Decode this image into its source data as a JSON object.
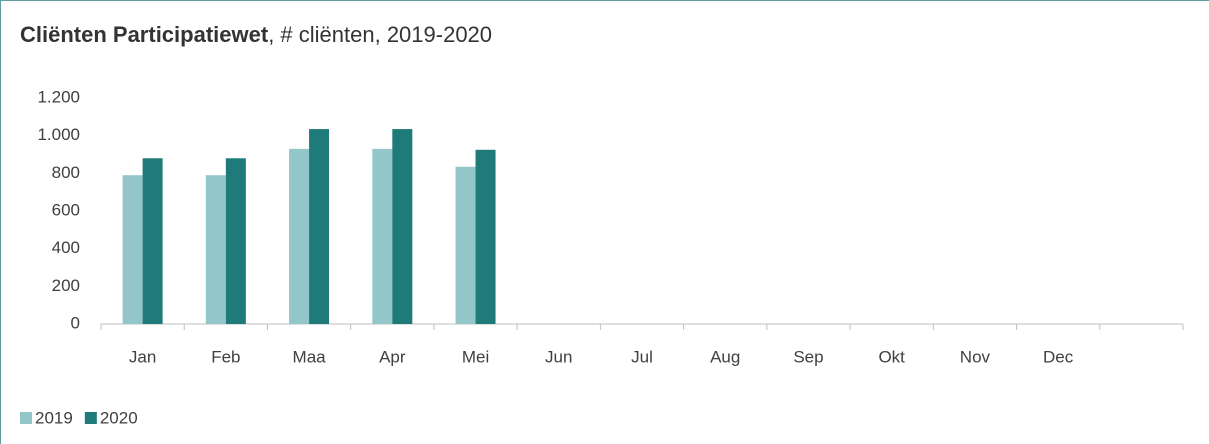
{
  "chart_data": {
    "type": "bar",
    "title": [
      "Cliënten Participatiewet",
      ", # cliënten, 2019-2020"
    ],
    "categories": [
      "Jan",
      "Feb",
      "Maa",
      "Apr",
      "Mei",
      "Jun",
      "Jul",
      "Aug",
      "Sep",
      "Okt",
      "Nov",
      "Dec",
      null
    ],
    "series": [
      {
        "name": "2019",
        "color": "#93c6c8",
        "values": [
          790,
          790,
          930,
          930,
          835,
          null,
          null,
          null,
          null,
          null,
          null,
          null,
          null
        ]
      },
      {
        "name": "2020",
        "color": "#1f7a7a",
        "values": [
          880,
          880,
          1035,
          1035,
          925,
          null,
          null,
          null,
          null,
          null,
          null,
          null,
          null
        ]
      }
    ],
    "ylim": [
      0,
      1200
    ],
    "yticks": [
      0,
      200,
      400,
      600,
      800,
      {
        "value": 1000,
        "label": "1.000"
      },
      {
        "value": 1200,
        "label": "1.200"
      }
    ],
    "grid": false,
    "legend": "bottom-left"
  }
}
